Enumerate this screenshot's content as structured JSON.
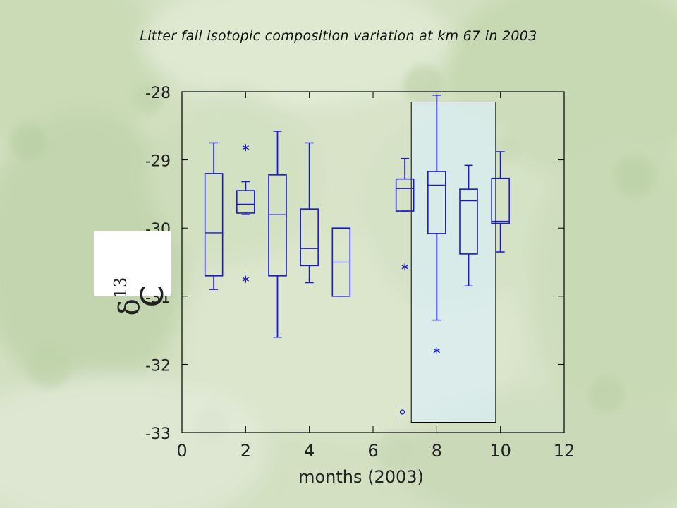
{
  "slide": {
    "title": "Litter fall isotopic composition variation at km 67 in 2003"
  },
  "chart_data": {
    "type": "box",
    "title": "Litter fall isotopic composition variation at km 67 in 2003",
    "xlabel": "months (2003)",
    "ylabel_symbol": "δ",
    "ylabel_superscript": "13",
    "ylabel_letter": "C",
    "xlim": [
      0,
      12
    ],
    "ylim": [
      -33,
      -28
    ],
    "xticks": [
      "0",
      "2",
      "4",
      "6",
      "8",
      "10",
      "12"
    ],
    "yticks": [
      "-28",
      "-29",
      "-30",
      "-31",
      "-32",
      "-33"
    ],
    "box_color": "#1a1ad0",
    "highlight_region": {
      "x_from": 7.2,
      "x_to": 9.85,
      "y_from": -32.85,
      "y_to": -28.15,
      "fill": "#dbeef5"
    },
    "boxes": [
      {
        "month": 1,
        "whisker_low": -30.9,
        "q1": -30.7,
        "median": -30.07,
        "q3": -29.2,
        "whisker_high": -28.75,
        "outliers": []
      },
      {
        "month": 2,
        "whisker_low": -29.8,
        "q1": -29.78,
        "median": -29.65,
        "q3": -29.45,
        "whisker_high": -29.32,
        "outliers": [
          {
            "y": -28.82,
            "marker": "*"
          },
          {
            "y": -30.75,
            "marker": "*"
          }
        ]
      },
      {
        "month": 3,
        "whisker_low": -31.6,
        "q1": -30.7,
        "median": -29.8,
        "q3": -29.22,
        "whisker_high": -28.58,
        "outliers": []
      },
      {
        "month": 4,
        "whisker_low": -30.8,
        "q1": -30.55,
        "median": -30.3,
        "q3": -29.72,
        "whisker_high": -28.75,
        "outliers": []
      },
      {
        "month": 5,
        "whisker_low": -31.0,
        "q1": -31.0,
        "median": -30.5,
        "q3": -30.0,
        "whisker_high": -30.0,
        "outliers": []
      },
      {
        "month": 7,
        "whisker_low": -29.75,
        "q1": -29.75,
        "median": -29.42,
        "q3": -29.28,
        "whisker_high": -28.98,
        "outliers": [
          {
            "y": -30.57,
            "marker": "*"
          },
          {
            "y": -32.7,
            "marker": "o"
          }
        ]
      },
      {
        "month": 8,
        "whisker_low": -31.35,
        "q1": -30.08,
        "median": -29.37,
        "q3": -29.17,
        "whisker_high": -28.05,
        "outliers": [
          {
            "y": -31.8,
            "marker": "*"
          }
        ]
      },
      {
        "month": 9,
        "whisker_low": -30.85,
        "q1": -30.38,
        "median": -29.6,
        "q3": -29.43,
        "whisker_high": -29.08,
        "outliers": []
      },
      {
        "month": 10,
        "whisker_low": -30.35,
        "q1": -29.93,
        "median": -29.9,
        "q3": -29.27,
        "whisker_high": -28.88,
        "outliers": []
      }
    ]
  }
}
